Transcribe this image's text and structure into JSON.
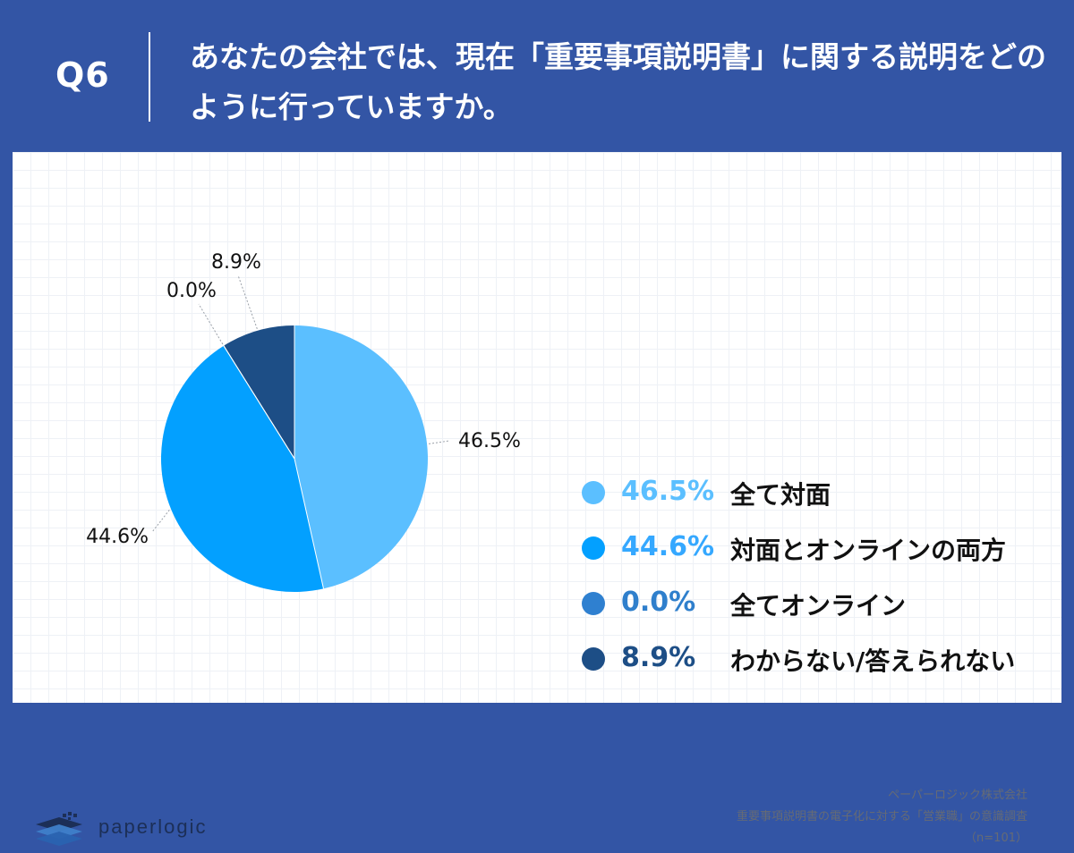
{
  "header": {
    "question_label": "Q6",
    "question_text": "あなたの会社では、現在「重要事項説明書」に関する説明をどのように行っていますか。"
  },
  "chart_data": {
    "type": "pie",
    "title": "",
    "categories": [
      "全て対面",
      "対面とオンラインの両方",
      "全てオンライン",
      "わからない/答えられない"
    ],
    "values": [
      46.5,
      44.6,
      0.0,
      8.9
    ],
    "value_labels": [
      "46.5%",
      "44.6%",
      "0.0%",
      "8.9%"
    ],
    "colors": [
      "#5bbfff",
      "#03a0ff",
      "#2f80d0",
      "#1d4e86"
    ],
    "start_angle_deg": 0,
    "direction": "clockwise",
    "legend_position": "right"
  },
  "legend_pct_colors": [
    "#5bbfff",
    "#35a8ff",
    "#2f7fcc",
    "#1d4e86"
  ],
  "footer": {
    "logo_text": "paperlogic",
    "company": "ペーパーロジック株式会社",
    "survey": "重要事項説明書の電子化に対する「営業職」の意識調査",
    "sample": "（n=101）"
  }
}
